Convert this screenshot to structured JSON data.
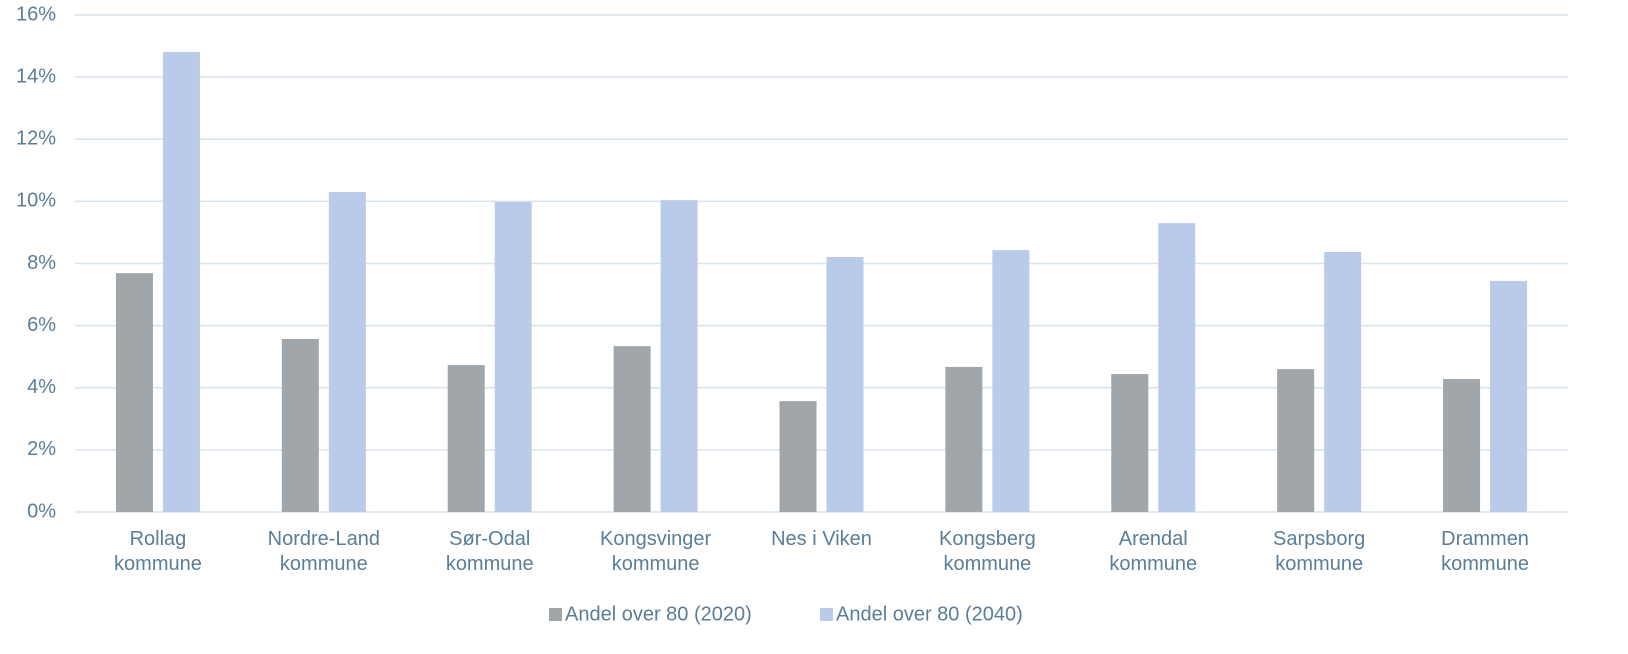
{
  "chart_data": {
    "type": "bar",
    "categories": [
      "Rollag kommune",
      "Nordre-Land kommune",
      "Sør-Odal kommune",
      "Kongsvinger kommune",
      "Nes i Viken",
      "Kongsberg kommune",
      "Arendal kommune",
      "Sarpsborg kommune",
      "Drammen kommune"
    ],
    "series": [
      {
        "name": "Andel over 80 (2020)",
        "color": "#a0a6a9",
        "values": [
          7.69,
          5.57,
          4.73,
          5.34,
          3.57,
          4.67,
          4.44,
          4.6,
          4.28
        ]
      },
      {
        "name": "Andel over 80 (2040)",
        "color": "#b9cbe9",
        "values": [
          14.81,
          10.3,
          9.98,
          10.04,
          8.21,
          8.43,
          9.3,
          8.37,
          7.44
        ]
      }
    ],
    "ylim": [
      0,
      16
    ],
    "yticks": [
      {
        "value": 0,
        "label": "0%"
      },
      {
        "value": 2,
        "label": "2%"
      },
      {
        "value": 4,
        "label": "4%"
      },
      {
        "value": 6,
        "label": "6%"
      },
      {
        "value": 8,
        "label": "8%"
      },
      {
        "value": 10,
        "label": "10%"
      },
      {
        "value": 12,
        "label": "12%"
      },
      {
        "value": 14,
        "label": "14%"
      },
      {
        "value": 16,
        "label": "16%"
      }
    ],
    "grid": true,
    "legend": "bottom"
  }
}
